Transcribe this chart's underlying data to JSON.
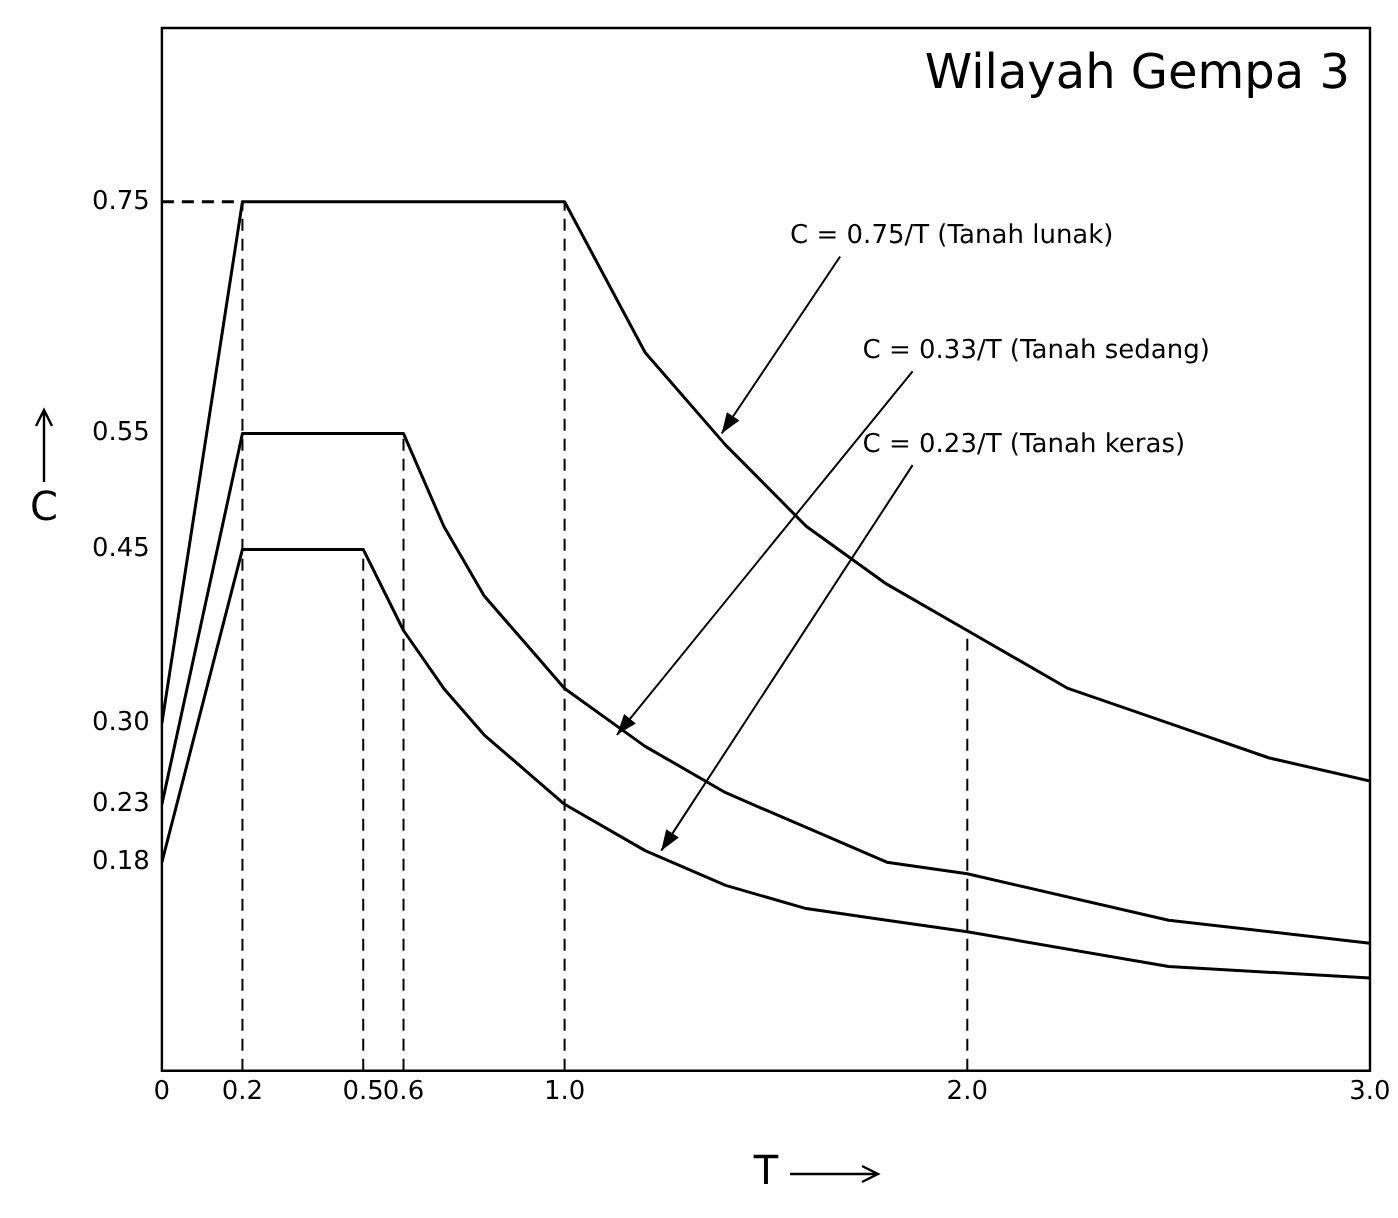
{
  "chart_data": {
    "type": "line",
    "title": "Wilayah Gempa 3",
    "xlabel": "T",
    "ylabel": "C",
    "xlim": [
      0,
      3
    ],
    "ylim": [
      0,
      0.9
    ],
    "xticks": [
      0,
      0.2,
      0.5,
      0.6,
      {
        "value": 1,
        "label": "1.0"
      },
      {
        "value": 2,
        "label": "2.0"
      },
      {
        "value": 3,
        "label": "3.0"
      }
    ],
    "yticks": [
      0.18,
      0.23,
      {
        "value": 0.3,
        "label": "0.30"
      },
      0.45,
      0.55,
      0.75
    ],
    "grid": false,
    "legend": false,
    "marker": "none",
    "line_style": "solid",
    "series": [
      {
        "color": "#000000",
        "x": [
          0,
          0.2,
          1.0,
          1.2,
          1.4,
          1.6,
          1.8,
          2.0,
          2.25,
          2.5,
          2.75,
          3.0
        ],
        "values": [
          0.3,
          0.75,
          0.75,
          0.62,
          0.54,
          0.47,
          0.42,
          0.38,
          0.33,
          0.3,
          0.27,
          0.25
        ]
      },
      {
        "color": "#000000",
        "x": [
          0,
          0.2,
          0.6,
          0.7,
          0.8,
          0.9,
          1.0,
          1.2,
          1.4,
          1.6,
          1.8,
          2.0,
          2.5,
          3.0
        ],
        "values": [
          0.23,
          0.55,
          0.55,
          0.47,
          0.41,
          0.37,
          0.33,
          0.28,
          0.24,
          0.21,
          0.18,
          0.17,
          0.13,
          0.11
        ]
      },
      {
        "color": "#000000",
        "line_style": "dashed",
        "x": [
          0,
          0.2
        ],
        "values": [
          0.75,
          0.75
        ]
      },
      {
        "color": "#000000",
        "x": [
          0,
          0.2,
          0.5,
          0.6,
          0.7,
          0.8,
          0.9,
          1.0,
          1.2,
          1.4,
          1.6,
          1.8,
          2.0,
          2.5,
          3.0
        ],
        "values": [
          0.18,
          0.45,
          0.45,
          0.38,
          0.33,
          0.29,
          0.26,
          0.23,
          0.19,
          0.16,
          0.14,
          0.13,
          0.12,
          0.09,
          0.08
        ]
      }
    ],
    "ref_lines": [
      {
        "axis": "x",
        "value": 0.2,
        "line_style": "dashed"
      },
      {
        "axis": "x",
        "value": 0.5,
        "line_style": "dashed"
      },
      {
        "axis": "x",
        "value": 0.6,
        "line_style": "dashed"
      },
      {
        "axis": "x",
        "value": 1.0,
        "line_style": "dashed"
      },
      {
        "axis": "x",
        "value": 2.0,
        "line_style": "dashed"
      }
    ],
    "annotations": [
      {
        "text": "C = 0.75/T (Tanah lunak)",
        "x": 1.39,
        "y": 0.55
      },
      {
        "text": "C = 0.33/T (Tanah sedang)",
        "x": 1.13,
        "y": 0.29
      },
      {
        "text": "C = 0.23/T (Tanah keras)",
        "x": 1.24,
        "y": 0.19
      }
    ]
  }
}
